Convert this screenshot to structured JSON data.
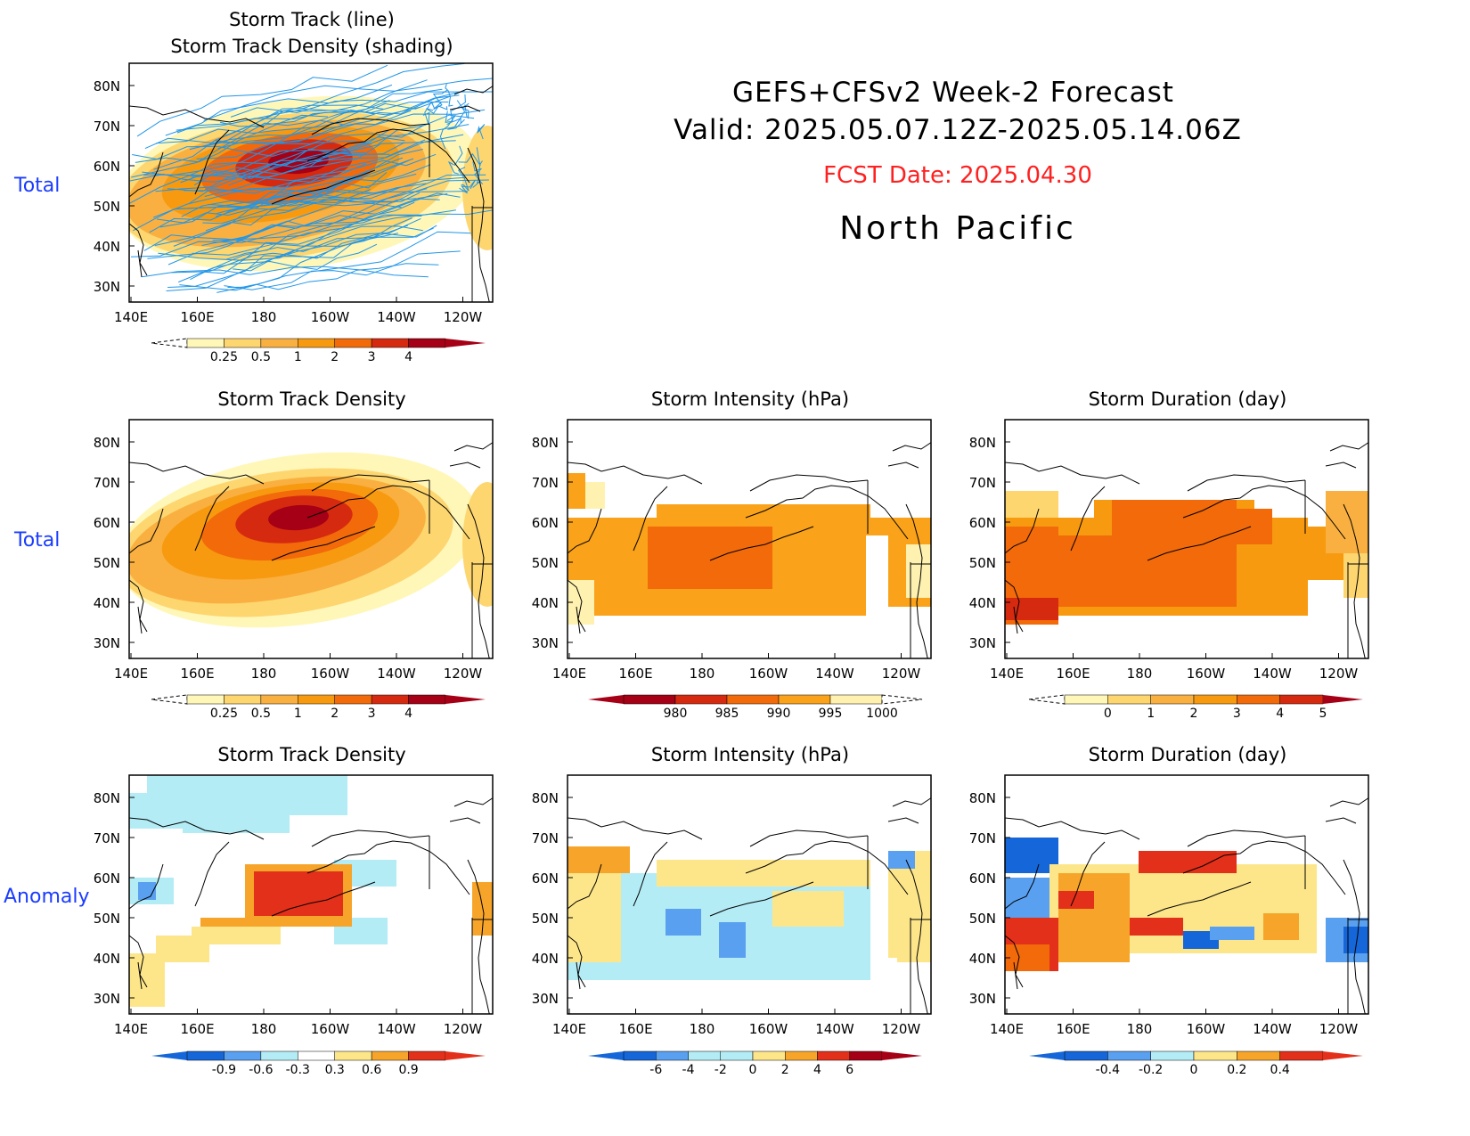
{
  "header": {
    "title_line1": "GEFS+CFSv2 Week-2 Forecast",
    "title_line2": "Valid: 2025.05.07.12Z-2025.05.14.06Z",
    "fcst_date": "FCST Date: 2025.04.30",
    "region": "North Pacific",
    "fcst_color": "#ff2020"
  },
  "rows": {
    "total_1": "Total",
    "total_2": "Total",
    "anomaly": "Anomaly",
    "label_color": "#1a3cff"
  },
  "axes": {
    "lon_ticks": [
      "140E",
      "160E",
      "180",
      "160W",
      "140W",
      "120W"
    ],
    "lat_ticks": [
      "80N",
      "70N",
      "60N",
      "50N",
      "40N",
      "30N"
    ]
  },
  "panels": [
    {
      "id": "track",
      "title1": "Storm Track (line)",
      "title2": "Storm Track Density (shading)",
      "cb_labels": [
        "0.25",
        "0.5",
        "1",
        "2",
        "3",
        "4"
      ]
    },
    {
      "id": "density",
      "title1": "Storm Track Density",
      "cb_labels": [
        "0.25",
        "0.5",
        "1",
        "2",
        "3",
        "4"
      ]
    },
    {
      "id": "intensity",
      "title1": "Storm Intensity (hPa)",
      "cb_labels": [
        "980",
        "985",
        "990",
        "995",
        "1000"
      ]
    },
    {
      "id": "duration",
      "title1": "Storm Duration (day)",
      "cb_labels": [
        "0",
        "1",
        "2",
        "3",
        "4",
        "5"
      ]
    },
    {
      "id": "density_anom",
      "title1": "Storm Track Density",
      "cb_labels": [
        "-0.9",
        "-0.6",
        "-0.3",
        "0.3",
        "0.6",
        "0.9"
      ]
    },
    {
      "id": "intensity_anom",
      "title1": "Storm Intensity (hPa)",
      "cb_labels": [
        "-6",
        "-4",
        "-2",
        "0",
        "2",
        "4",
        "6"
      ]
    },
    {
      "id": "duration_anom",
      "title1": "Storm Duration (day)",
      "cb_labels": [
        "-0.4",
        "-0.2",
        "0",
        "0.2",
        "0.4"
      ]
    }
  ],
  "colors": {
    "density_scale": [
      "#fff7b8",
      "#fdd670",
      "#f9b040",
      "#f79a10",
      "#f26a0a",
      "#d62a10",
      "#a50015"
    ],
    "intensity_scale": [
      "#a50015",
      "#d62a10",
      "#f26a0a",
      "#f9a21a",
      "#fff2b0"
    ],
    "anom_neg": [
      "#1566d8",
      "#5aa0f0",
      "#b4ecf6"
    ],
    "anom_pos": [
      "#fde68a",
      "#f7a52a",
      "#f26a0a",
      "#e3301a"
    ],
    "track_line": "#2196e8"
  }
}
